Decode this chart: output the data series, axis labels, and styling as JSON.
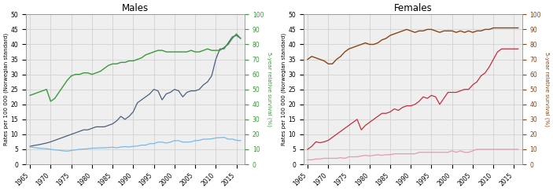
{
  "title_males": "Males",
  "title_females": "Females",
  "ylabel_left": "Rates per 100 000 (Norwegian standard)",
  "ylabel_right": "5-year relative survival (%)",
  "xlim": [
    1964,
    2017
  ],
  "ylim_left": [
    0,
    50
  ],
  "ylim_right": [
    0,
    100
  ],
  "xticks": [
    1965,
    1970,
    1975,
    1980,
    1985,
    1990,
    1995,
    2000,
    2005,
    2010,
    2015
  ],
  "yticks_left": [
    0,
    5,
    10,
    15,
    20,
    25,
    30,
    35,
    40,
    45,
    50
  ],
  "yticks_right": [
    0,
    10,
    20,
    30,
    40,
    50,
    60,
    70,
    80,
    90,
    100
  ],
  "years": [
    1965,
    1966,
    1967,
    1968,
    1969,
    1970,
    1971,
    1972,
    1973,
    1974,
    1975,
    1976,
    1977,
    1978,
    1979,
    1980,
    1981,
    1982,
    1983,
    1984,
    1985,
    1986,
    1987,
    1988,
    1989,
    1990,
    1991,
    1992,
    1993,
    1994,
    1995,
    1996,
    1997,
    1998,
    1999,
    2000,
    2001,
    2002,
    2003,
    2004,
    2005,
    2006,
    2007,
    2008,
    2009,
    2010,
    2011,
    2012,
    2013,
    2014,
    2015,
    2016
  ],
  "males_incidence": [
    6.0,
    6.3,
    6.5,
    6.8,
    7.1,
    7.5,
    8.0,
    8.5,
    9.0,
    9.5,
    10.0,
    10.5,
    11.0,
    11.5,
    11.5,
    12.0,
    12.5,
    12.5,
    12.5,
    13.0,
    13.5,
    14.5,
    16.0,
    15.0,
    16.0,
    17.5,
    20.5,
    21.5,
    22.5,
    23.5,
    25.0,
    24.5,
    21.5,
    23.5,
    24.0,
    25.0,
    24.5,
    22.5,
    24.0,
    24.5,
    24.5,
    25.0,
    26.5,
    27.5,
    29.5,
    35.0,
    38.5,
    38.5,
    40.5,
    42.5,
    43.0,
    42.0
  ],
  "males_mortality": [
    5.8,
    5.6,
    5.4,
    5.3,
    5.2,
    5.0,
    4.8,
    4.7,
    4.5,
    4.4,
    4.6,
    4.8,
    5.0,
    5.1,
    5.2,
    5.4,
    5.4,
    5.5,
    5.5,
    5.6,
    5.7,
    5.5,
    5.8,
    5.9,
    5.8,
    6.0,
    6.1,
    6.4,
    6.4,
    6.9,
    6.9,
    7.4,
    7.4,
    7.1,
    7.4,
    7.9,
    7.9,
    7.4,
    7.4,
    7.5,
    7.9,
    8.0,
    8.4,
    8.4,
    8.5,
    8.8,
    8.9,
    9.0,
    8.4,
    8.4,
    8.0,
    7.9
  ],
  "males_survival_pct": [
    46,
    47,
    48,
    49,
    50,
    42,
    44,
    48,
    52,
    56,
    59,
    60,
    60,
    61,
    61,
    60,
    61,
    62,
    64,
    66,
    67,
    67,
    68,
    68,
    69,
    69,
    70,
    71,
    73,
    74,
    75,
    76,
    76,
    75,
    75,
    75,
    75,
    75,
    75,
    76,
    75,
    75,
    76,
    77,
    76,
    76,
    76,
    78,
    80,
    84,
    87,
    84
  ],
  "females_incidence": [
    5.0,
    6.0,
    7.5,
    7.2,
    7.5,
    8.0,
    9.0,
    10.0,
    11.0,
    12.0,
    13.0,
    14.0,
    15.0,
    11.5,
    13.0,
    14.0,
    15.0,
    16.0,
    17.0,
    17.0,
    17.5,
    18.5,
    18.0,
    19.0,
    19.5,
    19.5,
    20.0,
    21.0,
    22.5,
    22.0,
    23.0,
    22.5,
    20.0,
    22.0,
    24.0,
    24.0,
    24.0,
    24.5,
    25.0,
    25.0,
    26.5,
    27.5,
    29.5,
    30.5,
    32.5,
    35.0,
    37.5,
    38.5,
    38.5,
    38.5,
    38.5,
    38.5
  ],
  "females_mortality": [
    1.5,
    1.5,
    1.8,
    1.8,
    2.0,
    2.0,
    2.0,
    2.0,
    2.2,
    2.0,
    2.5,
    2.5,
    2.5,
    2.8,
    3.0,
    2.8,
    3.0,
    3.2,
    3.0,
    3.2,
    3.2,
    3.5,
    3.5,
    3.5,
    3.5,
    3.5,
    3.5,
    4.0,
    4.0,
    4.0,
    4.0,
    4.0,
    4.0,
    4.0,
    4.0,
    4.5,
    4.0,
    4.5,
    4.0,
    4.0,
    4.5,
    5.0,
    5.0,
    5.0,
    5.0,
    5.0,
    5.0,
    5.0,
    5.0,
    5.0,
    5.0,
    5.0
  ],
  "females_survival_pct": [
    70,
    72,
    71,
    70,
    69,
    67,
    67,
    70,
    72,
    75,
    77,
    78,
    79,
    80,
    81,
    80,
    80,
    81,
    83,
    84,
    86,
    87,
    88,
    89,
    90,
    89,
    88,
    89,
    89,
    90,
    90,
    89,
    88,
    89,
    89,
    89,
    88,
    89,
    88,
    89,
    88,
    89,
    89,
    90,
    90,
    91,
    91,
    91,
    91,
    91,
    91,
    91
  ],
  "color_males_survival": "#3a9a3a",
  "color_males_incidence": "#4a6080",
  "color_males_mortality": "#7ab8e8",
  "color_females_survival": "#8B4513",
  "color_females_incidence": "#c03040",
  "color_females_mortality": "#e898b0",
  "color_right_axis_m": "#3a9a3a",
  "color_right_axis_f": "#8B4513",
  "grid_color": "#cccccc",
  "bg_color": "#efefef"
}
